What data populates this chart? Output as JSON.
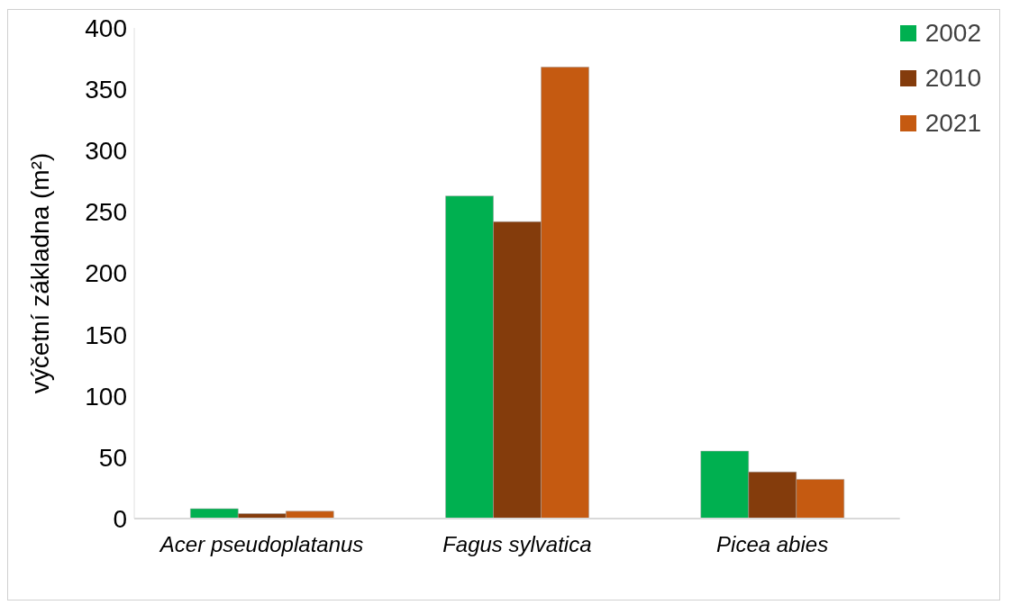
{
  "chart_data": {
    "type": "bar",
    "ylabel": "výčetní základna (m²)",
    "categories": [
      "Acer pseudoplatanus",
      "Fagus sylvatica",
      "Picea abies"
    ],
    "series": [
      {
        "name": "2002",
        "color": "#00b050",
        "values": [
          8,
          263,
          55
        ]
      },
      {
        "name": "2010",
        "color": "#843c0c",
        "values": [
          4,
          242,
          38
        ]
      },
      {
        "name": "2021",
        "color": "#c55a11",
        "values": [
          6,
          368,
          32
        ]
      }
    ],
    "ylim": [
      0,
      400
    ],
    "yticks": [
      0,
      50,
      100,
      150,
      200,
      250,
      300,
      350,
      400
    ],
    "grid": false,
    "legend": "top right"
  }
}
